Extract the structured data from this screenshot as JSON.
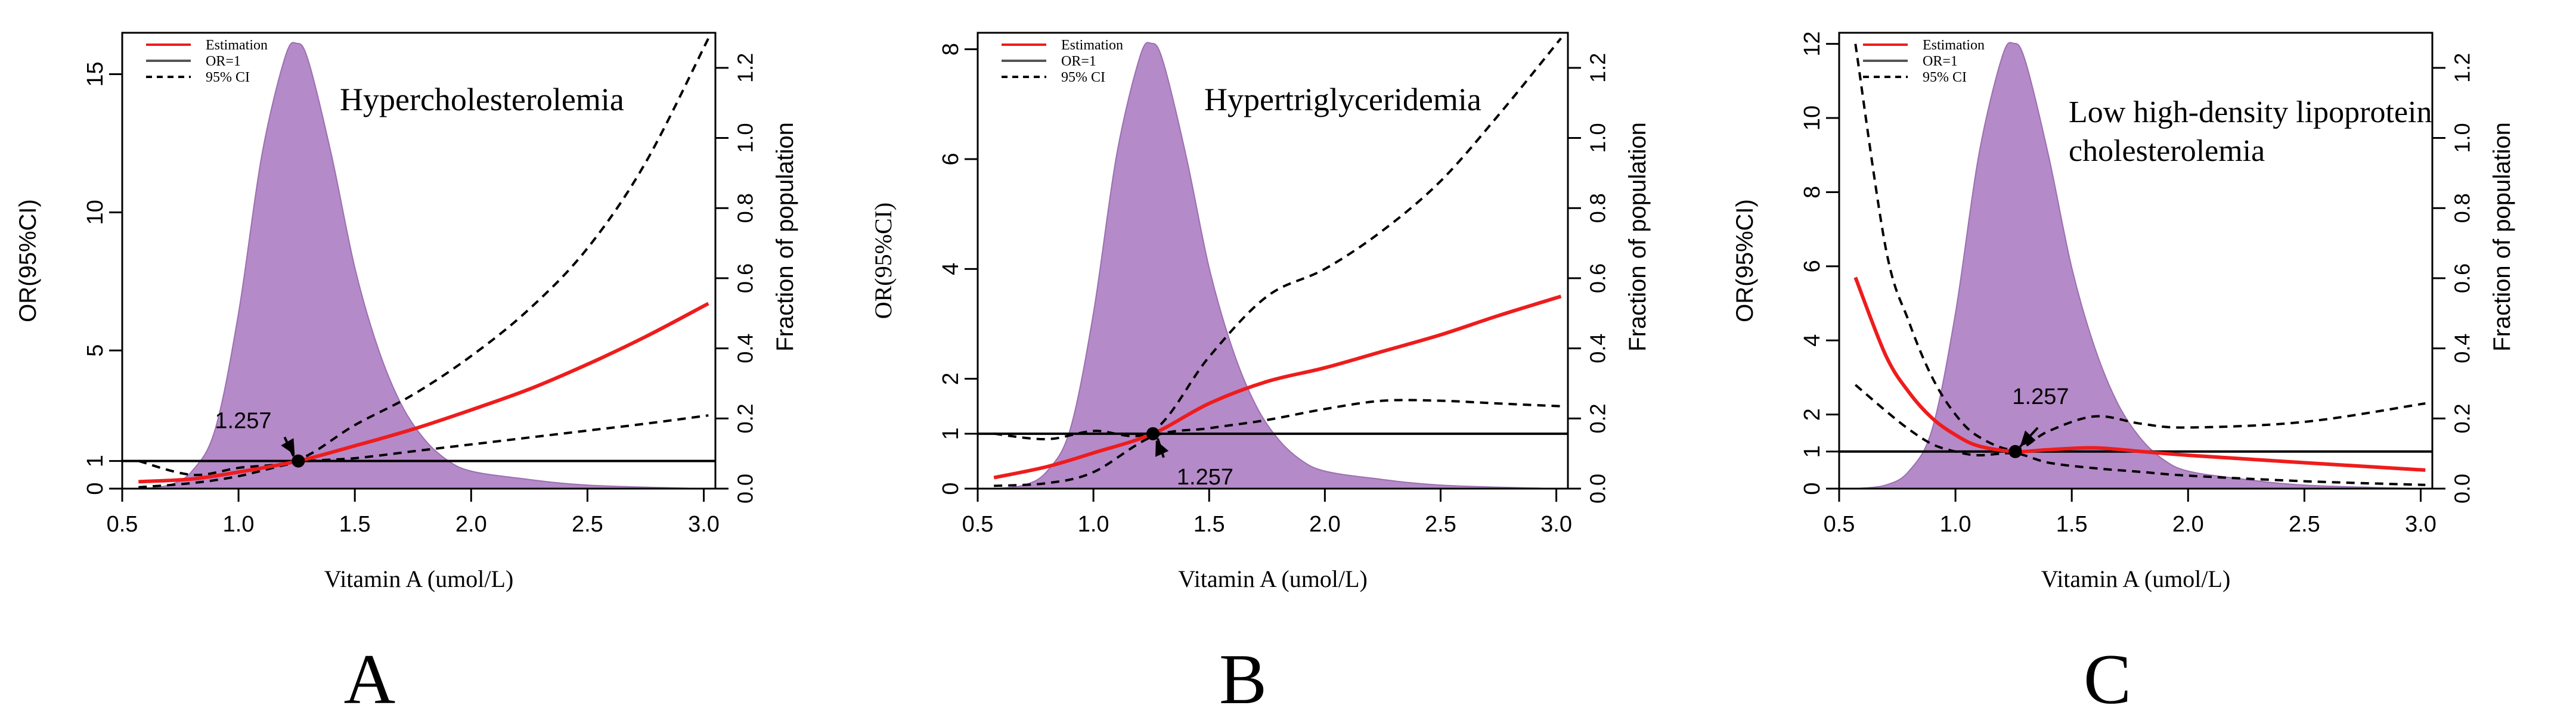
{
  "figure": {
    "chart_labels": [
      "A",
      "B",
      "C"
    ],
    "legend": {
      "estimation": "Estimation",
      "or1": "OR=1",
      "ci": "95% CI"
    },
    "colors": {
      "estimation": "#ee1c1c",
      "reference": "#000000",
      "ci": "#000000",
      "density": "#b58ac8"
    }
  },
  "chart_data": [
    {
      "type": "line",
      "panel": "A",
      "title": "Hypercholesterolemia",
      "xlabel": "Vitamin A (umol/L)",
      "ylabel": "OR(95%CI)",
      "y2label": "Fraction of population",
      "xlim": [
        0.5,
        3.05
      ],
      "ylim": [
        0,
        16.5
      ],
      "y2lim": [
        0,
        1.3
      ],
      "xticks": [
        0.5,
        1.0,
        1.5,
        2.0,
        2.5,
        3.0
      ],
      "xtick_labels": [
        "0.5",
        "1.0",
        "1.5",
        "2.0",
        "2.5",
        "3.0"
      ],
      "yticks": [
        0,
        1,
        5,
        10,
        15
      ],
      "ytick_labels": [
        "0",
        "1",
        "5",
        "10",
        "15"
      ],
      "y2ticks": [
        0,
        0.2,
        0.4,
        0.6,
        0.8,
        1.0,
        1.2
      ],
      "y2tick_labels": [
        "0.0",
        "0.2",
        "0.4",
        "0.6",
        "0.8",
        "1.0",
        "1.2"
      ],
      "reference_line": 1,
      "knot": {
        "x": 1.257,
        "y": 1,
        "label": "1.257"
      },
      "estimation": {
        "x": [
          0.57,
          0.8,
          1.0,
          1.257,
          1.5,
          1.75,
          2.0,
          2.25,
          2.5,
          2.75,
          3.02
        ],
        "y": [
          0.25,
          0.35,
          0.6,
          1.0,
          1.55,
          2.15,
          2.85,
          3.6,
          4.5,
          5.5,
          6.7
        ]
      },
      "ci_upper": {
        "x": [
          0.57,
          0.8,
          1.0,
          1.257,
          1.5,
          1.75,
          2.0,
          2.25,
          2.5,
          2.75,
          3.02
        ],
        "y": [
          1.0,
          0.5,
          0.75,
          1.05,
          2.3,
          3.4,
          4.8,
          6.5,
          8.7,
          11.8,
          16.3
        ]
      },
      "ci_lower": {
        "x": [
          0.57,
          0.8,
          1.0,
          1.257,
          1.5,
          1.75,
          2.0,
          2.25,
          2.5,
          2.75,
          3.02
        ],
        "y": [
          0.05,
          0.2,
          0.45,
          0.95,
          1.1,
          1.35,
          1.6,
          1.85,
          2.1,
          2.35,
          2.65
        ]
      },
      "density": {
        "x": [
          0.57,
          0.7,
          0.8,
          0.9,
          1.0,
          1.1,
          1.2,
          1.25,
          1.3,
          1.4,
          1.5,
          1.6,
          1.7,
          1.8,
          1.9,
          2.0,
          2.2,
          2.5,
          3.0
        ],
        "y": [
          0.0,
          0.01,
          0.05,
          0.17,
          0.5,
          0.95,
          1.23,
          1.27,
          1.22,
          0.95,
          0.63,
          0.4,
          0.24,
          0.14,
          0.08,
          0.05,
          0.03,
          0.01,
          0.0
        ]
      }
    },
    {
      "type": "line",
      "panel": "B",
      "title": "Hypertriglyceridemia",
      "xlabel": "Vitamin A (umol/L)",
      "ylabel": "OR(95%CI)",
      "y2label": "Fraction of population",
      "xlim": [
        0.5,
        3.05
      ],
      "ylim": [
        0,
        8.3
      ],
      "y2lim": [
        0,
        1.3
      ],
      "xticks": [
        0.5,
        1.0,
        1.5,
        2.0,
        2.5,
        3.0
      ],
      "xtick_labels": [
        "0.5",
        "1.0",
        "1.5",
        "2.0",
        "2.5",
        "3.0"
      ],
      "yticks": [
        0,
        1,
        2,
        4,
        6,
        8
      ],
      "ytick_labels": [
        "0",
        "1",
        "2",
        "4",
        "6",
        "8"
      ],
      "y2ticks": [
        0,
        0.2,
        0.4,
        0.6,
        0.8,
        1.0,
        1.2
      ],
      "y2tick_labels": [
        "0.0",
        "0.2",
        "0.4",
        "0.6",
        "0.8",
        "1.0",
        "1.2"
      ],
      "reference_line": 1,
      "knot": {
        "x": 1.257,
        "y": 1,
        "label": "1.257"
      },
      "estimation": {
        "x": [
          0.57,
          0.8,
          1.0,
          1.257,
          1.5,
          1.75,
          2.0,
          2.25,
          2.5,
          2.75,
          3.02
        ],
        "y": [
          0.2,
          0.4,
          0.65,
          1.0,
          1.55,
          1.95,
          2.2,
          2.5,
          2.8,
          3.15,
          3.5
        ]
      },
      "ci_upper": {
        "x": [
          0.57,
          0.8,
          1.0,
          1.257,
          1.5,
          1.75,
          2.0,
          2.25,
          2.5,
          2.75,
          3.02
        ],
        "y": [
          1.0,
          0.9,
          1.05,
          1.05,
          2.4,
          3.5,
          4.0,
          4.7,
          5.6,
          6.8,
          8.2
        ]
      },
      "ci_lower": {
        "x": [
          0.57,
          0.8,
          1.0,
          1.257,
          1.5,
          1.75,
          2.0,
          2.25,
          2.5,
          2.75,
          3.02
        ],
        "y": [
          0.05,
          0.1,
          0.3,
          0.95,
          1.1,
          1.25,
          1.45,
          1.6,
          1.6,
          1.55,
          1.5
        ]
      },
      "density": {
        "x": [
          0.57,
          0.7,
          0.8,
          0.9,
          1.0,
          1.1,
          1.2,
          1.25,
          1.3,
          1.4,
          1.5,
          1.6,
          1.7,
          1.8,
          1.9,
          2.0,
          2.2,
          2.5,
          3.0
        ],
        "y": [
          0.0,
          0.01,
          0.05,
          0.17,
          0.5,
          0.95,
          1.23,
          1.27,
          1.22,
          0.95,
          0.63,
          0.4,
          0.24,
          0.14,
          0.08,
          0.05,
          0.03,
          0.01,
          0.0
        ]
      }
    },
    {
      "type": "line",
      "panel": "C",
      "title": [
        "Low high-density lipoprotein",
        "cholesterolemia"
      ],
      "xlabel": "Vitamin A (umol/L)",
      "ylabel": "OR(95%CI)",
      "y2label": "Fraction of population",
      "xlim": [
        0.5,
        3.05
      ],
      "ylim": [
        0,
        12.3
      ],
      "y2lim": [
        0,
        1.3
      ],
      "xticks": [
        0.5,
        1.0,
        1.5,
        2.0,
        2.5,
        3.0
      ],
      "xtick_labels": [
        "0.5",
        "1.0",
        "1.5",
        "2.0",
        "2.5",
        "3.0"
      ],
      "yticks": [
        0,
        1,
        2,
        4,
        6,
        8,
        10,
        12
      ],
      "ytick_labels": [
        "0",
        "1",
        "2",
        "4",
        "6",
        "8",
        "10",
        "12"
      ],
      "y2ticks": [
        0,
        0.2,
        0.4,
        0.6,
        0.8,
        1.0,
        1.2
      ],
      "y2tick_labels": [
        "0.0",
        "0.2",
        "0.4",
        "0.6",
        "0.8",
        "1.0",
        "1.2"
      ],
      "reference_line": 1,
      "knot": {
        "x": 1.257,
        "y": 1,
        "label": "1.257"
      },
      "estimation": {
        "x": [
          0.57,
          0.7,
          0.8,
          0.9,
          1.0,
          1.1,
          1.257,
          1.4,
          1.6,
          1.8,
          2.0,
          2.5,
          3.02
        ],
        "y": [
          5.7,
          3.6,
          2.6,
          1.9,
          1.45,
          1.15,
          1.0,
          1.05,
          1.1,
          1.0,
          0.9,
          0.7,
          0.5
        ]
      },
      "ci_upper": {
        "x": [
          0.57,
          0.7,
          0.8,
          0.9,
          1.0,
          1.1,
          1.257,
          1.4,
          1.6,
          1.8,
          2.0,
          2.5,
          3.02
        ],
        "y": [
          12.0,
          6.5,
          4.5,
          3.0,
          2.0,
          1.4,
          1.05,
          1.55,
          1.95,
          1.75,
          1.65,
          1.8,
          2.3
        ]
      },
      "ci_lower": {
        "x": [
          0.57,
          0.7,
          0.8,
          0.9,
          1.0,
          1.1,
          1.257,
          1.4,
          1.6,
          1.8,
          2.0,
          2.5,
          3.02
        ],
        "y": [
          2.8,
          2.1,
          1.6,
          1.2,
          1.0,
          0.9,
          0.95,
          0.7,
          0.55,
          0.45,
          0.35,
          0.2,
          0.1
        ]
      },
      "density": {
        "x": [
          0.57,
          0.7,
          0.8,
          0.9,
          1.0,
          1.1,
          1.2,
          1.25,
          1.3,
          1.4,
          1.5,
          1.6,
          1.7,
          1.8,
          1.9,
          2.0,
          2.2,
          2.5,
          3.0
        ],
        "y": [
          0.0,
          0.01,
          0.05,
          0.17,
          0.5,
          0.95,
          1.23,
          1.27,
          1.22,
          0.95,
          0.63,
          0.4,
          0.24,
          0.14,
          0.08,
          0.05,
          0.03,
          0.01,
          0.0
        ]
      }
    }
  ]
}
